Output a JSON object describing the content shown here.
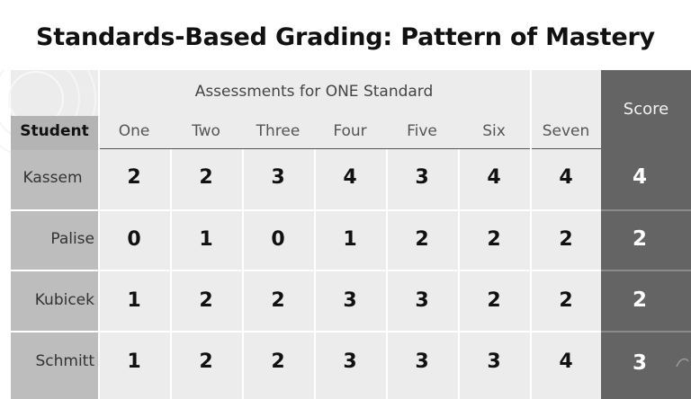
{
  "title": "Standards-Based Grading: Pattern of Mastery",
  "table": {
    "group_header": "Assessments for ONE Standard",
    "student_header": "Student",
    "score_header": "Score",
    "columns": [
      "One",
      "Two",
      "Three",
      "Four",
      "Five",
      "Six",
      "Seven"
    ],
    "rows": [
      {
        "name": "Kassem",
        "scores": [
          "2",
          "2",
          "3",
          "4",
          "3",
          "4",
          "4"
        ],
        "final": "4"
      },
      {
        "name": "Palise",
        "scores": [
          "0",
          "1",
          "0",
          "1",
          "2",
          "2",
          "2"
        ],
        "final": "2"
      },
      {
        "name": "Kubicek",
        "scores": [
          "1",
          "2",
          "2",
          "3",
          "3",
          "2",
          "2"
        ],
        "final": "2"
      },
      {
        "name": "Schmitt",
        "scores": [
          "1",
          "2",
          "2",
          "3",
          "3",
          "3",
          "4"
        ],
        "final": "3"
      }
    ]
  },
  "colors": {
    "header_bg": "#ececec",
    "student_col_bg": "#bdbdbd",
    "score_col_bg": "#646464",
    "text": "#111111"
  }
}
